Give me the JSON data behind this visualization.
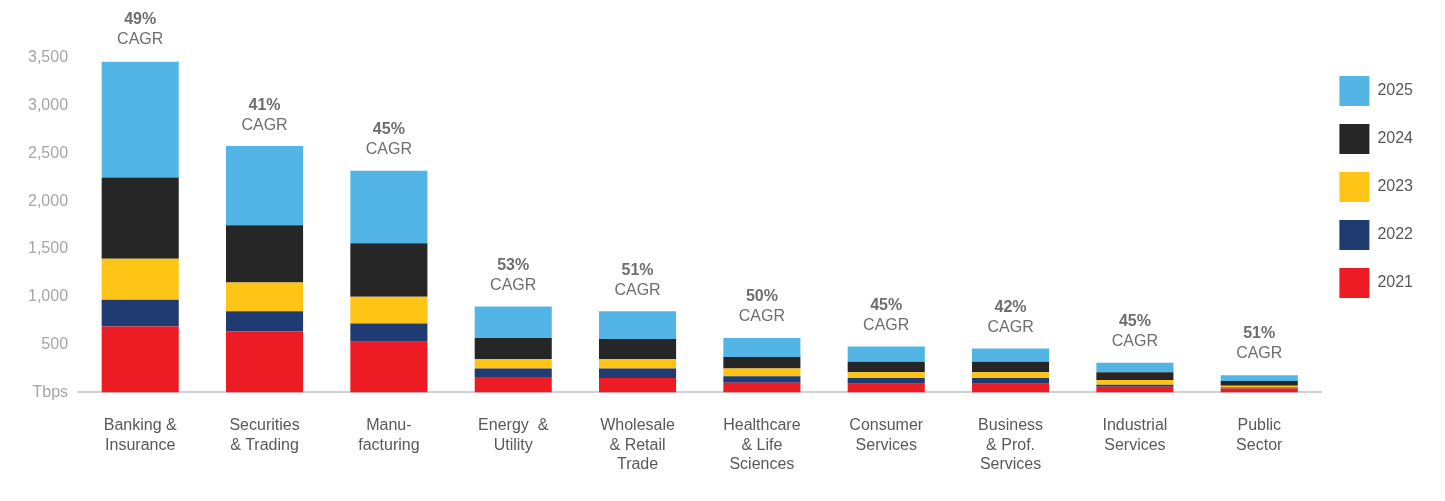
{
  "chart_data": {
    "type": "bar",
    "stacked": true,
    "legend": "top right",
    "grid": false,
    "categories": [
      "Banking &\nInsurance",
      "Securities\n& Trading",
      "Manu-\nfacturing",
      "Energy  &\nUtility",
      "Wholesale\n& Retail\nTrade",
      "Healthcare\n& Life\nSciences",
      "Consumer\nServices",
      "Business\n& Prof.\nServices",
      "Industrial\nServices",
      "Public\nSector"
    ],
    "series": [
      {
        "name": "2021",
        "color": "#ed1c24",
        "values": [
          690,
          640,
          530,
          160,
          150,
          100,
          90,
          90,
          60,
          40
        ]
      },
      {
        "name": "2022",
        "color": "#203a72",
        "values": [
          280,
          210,
          190,
          90,
          100,
          70,
          60,
          60,
          20,
          10
        ]
      },
      {
        "name": "2023",
        "color": "#ffc516",
        "values": [
          430,
          300,
          280,
          100,
          100,
          80,
          60,
          60,
          50,
          20
        ]
      },
      {
        "name": "2024",
        "color": "#262626",
        "values": [
          850,
          600,
          560,
          220,
          210,
          120,
          110,
          110,
          80,
          50
        ]
      },
      {
        "name": "2025",
        "color": "#53b5e6",
        "values": [
          1210,
          830,
          760,
          330,
          290,
          200,
          160,
          140,
          100,
          60
        ]
      }
    ],
    "ylim": [
      0,
      3500
    ],
    "yticks": [
      {
        "value": 0,
        "label": "Tbps"
      },
      {
        "value": 500,
        "label": "500"
      },
      {
        "value": 1000,
        "label": "1,000"
      },
      {
        "value": 1500,
        "label": "1,500"
      },
      {
        "value": 2000,
        "label": "2,000"
      },
      {
        "value": 2500,
        "label": "2,500"
      },
      {
        "value": 3000,
        "label": "3,000"
      },
      {
        "value": 3500,
        "label": "3,500"
      }
    ],
    "annotations": [
      {
        "text": "49%\nCAGR",
        "x": "Banking &\nInsurance",
        "y": 3460
      },
      {
        "text": "41%\nCAGR",
        "x": "Securities\n& Trading",
        "y": 2560
      },
      {
        "text": "45%\nCAGR",
        "x": "Manu-\nfacturing",
        "y": 2315
      },
      {
        "text": "53%\nCAGR",
        "x": "Energy  &\nUtility",
        "y": 885
      },
      {
        "text": "51%\nCAGR",
        "x": "Wholesale\n& Retail\nTrade",
        "y": 835
      },
      {
        "text": "50%\nCAGR",
        "x": "Healthcare\n& Life\nSciences",
        "y": 560
      },
      {
        "text": "45%\nCAGR",
        "x": "Consumer\nServices",
        "y": 465
      },
      {
        "text": "42%\nCAGR",
        "x": "Business\n& Prof.\nServices",
        "y": 445
      },
      {
        "text": "45%\nCAGR",
        "x": "Industrial\nServices",
        "y": 300
      },
      {
        "text": "51%\nCAGR",
        "x": "Public\nSector",
        "y": 175
      }
    ]
  }
}
